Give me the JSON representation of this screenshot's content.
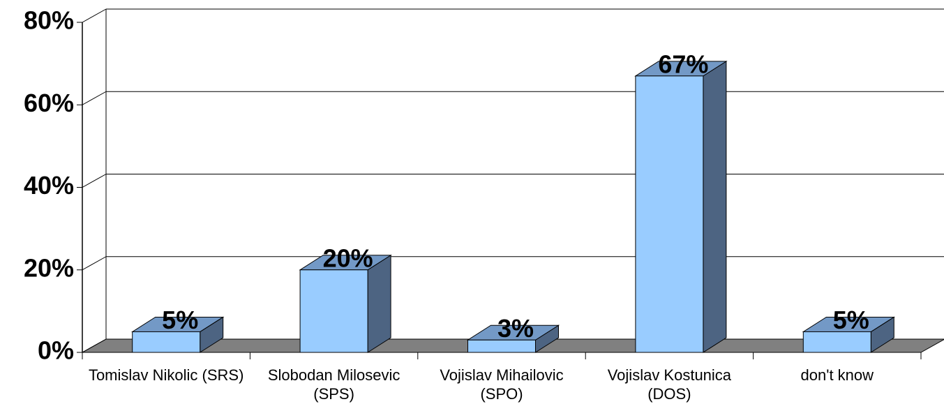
{
  "chart_data": {
    "type": "bar3d",
    "categories": [
      "Tomislav Nikolic (SRS)",
      "Slobodan Milosevic (SPS)",
      "Vojislav Mihailovic (SPO)",
      "Vojislav Kostunica (DOS)",
      "don't know"
    ],
    "values": [
      5,
      20,
      3,
      67,
      5
    ],
    "value_labels": [
      "5%",
      "20%",
      "3%",
      "67%",
      "5%"
    ],
    "color": "#99ccff",
    "ylim": [
      0,
      80
    ],
    "yticks": [
      {
        "value": 0,
        "label": "0%"
      },
      {
        "value": 20,
        "label": "20%"
      },
      {
        "value": 40,
        "label": "40%"
      },
      {
        "value": 60,
        "label": "60%"
      },
      {
        "value": 80,
        "label": "80%"
      }
    ],
    "grid": true
  }
}
